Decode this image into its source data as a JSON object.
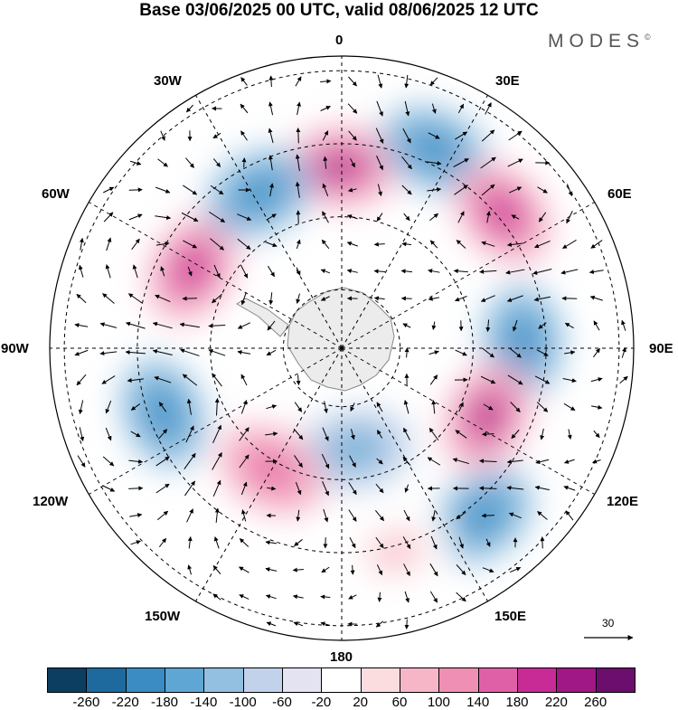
{
  "title": "Base 03/06/2025 00 UTC, valid 08/06/2025 12 UTC",
  "brand": {
    "name": "MODES",
    "mark": "©"
  },
  "longitude_labels": {
    "top": "0",
    "bottom": "180",
    "left": "90W",
    "right": "90E",
    "nw1": "30W",
    "nw2": "60W",
    "ne1": "30E",
    "ne2": "60E",
    "sw1": "120W",
    "sw2": "150W",
    "se1": "120E",
    "se2": "150E"
  },
  "vector_reference": {
    "value": "30"
  },
  "colorbar": {
    "colors": [
      "#0c3e61",
      "#1e6a9e",
      "#3a8cc2",
      "#5fa6d4",
      "#93bfe0",
      "#c2d2ea",
      "#e3e3f2",
      "#ffffff",
      "#fbdde0",
      "#f7b6c8",
      "#f08fb4",
      "#e060a8",
      "#c82b96",
      "#a01786",
      "#6b0e6e"
    ],
    "ticks": [
      "-260",
      "-220",
      "-180",
      "-140",
      "-100",
      "-60",
      "-20",
      "20",
      "60",
      "100",
      "140",
      "180",
      "220",
      "260"
    ]
  },
  "anomaly_centers": [
    {
      "lon": 0,
      "r": 0.62,
      "value": 240
    },
    {
      "lon": 25,
      "r": 0.75,
      "value": -200
    },
    {
      "lon": 50,
      "r": 0.72,
      "value": 220
    },
    {
      "lon": 88,
      "r": 0.62,
      "value": -200
    },
    {
      "lon": 115,
      "r": 0.55,
      "value": 240
    },
    {
      "lon": 140,
      "r": 0.75,
      "value": -180
    },
    {
      "lon": 165,
      "r": 0.72,
      "value": 80
    },
    {
      "lon": 172,
      "r": 0.35,
      "value": -140
    },
    {
      "lon": -150,
      "r": 0.48,
      "value": 180
    },
    {
      "lon": -110,
      "r": 0.65,
      "value": -200
    },
    {
      "lon": -62,
      "r": 0.58,
      "value": 220
    },
    {
      "lon": -28,
      "r": 0.6,
      "value": -200
    }
  ]
}
